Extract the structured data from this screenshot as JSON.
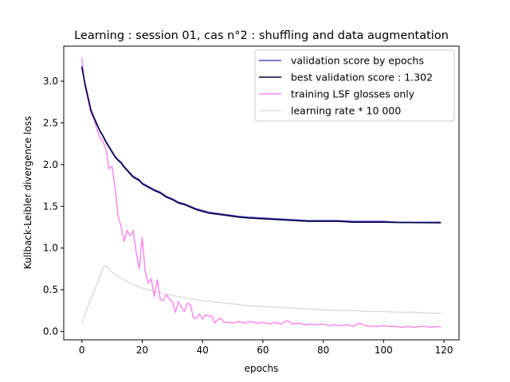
{
  "chart_data": {
    "type": "line",
    "title": "Learning : session 01, cas n°2 : shuffling and data augmentation",
    "xlabel": "epochs",
    "ylabel": "Kullback-Leibler divergence loss",
    "xlim": [
      -6,
      125
    ],
    "ylim": [
      -0.1,
      3.42
    ],
    "xticks": [
      0,
      20,
      40,
      60,
      80,
      100,
      120
    ],
    "yticks": [
      0.0,
      0.5,
      1.0,
      1.5,
      2.0,
      2.5,
      3.0
    ],
    "xtick_labels": [
      "0",
      "20",
      "40",
      "60",
      "80",
      "100",
      "120"
    ],
    "ytick_labels": [
      "0.0",
      "0.5",
      "1.0",
      "1.5",
      "2.0",
      "2.5",
      "3.0"
    ],
    "grid": false,
    "legend_position": "upper right",
    "series": [
      {
        "name": "validation score by epochs",
        "color": "#4b4bc8",
        "points": [
          [
            0,
            3.18
          ],
          [
            1,
            2.98
          ],
          [
            2,
            2.82
          ],
          [
            3,
            2.66
          ],
          [
            4,
            2.57
          ],
          [
            5,
            2.49
          ],
          [
            6,
            2.41
          ],
          [
            7,
            2.35
          ],
          [
            8,
            2.28
          ],
          [
            9,
            2.22
          ],
          [
            10,
            2.16
          ],
          [
            11,
            2.1
          ],
          [
            12,
            2.06
          ],
          [
            13,
            2.03
          ],
          [
            14,
            1.98
          ],
          [
            15,
            1.94
          ],
          [
            16,
            1.9
          ],
          [
            17,
            1.86
          ],
          [
            18,
            1.84
          ],
          [
            19,
            1.82
          ],
          [
            20,
            1.78
          ],
          [
            22,
            1.74
          ],
          [
            24,
            1.7
          ],
          [
            26,
            1.67
          ],
          [
            28,
            1.62
          ],
          [
            30,
            1.59
          ],
          [
            32,
            1.55
          ],
          [
            34,
            1.53
          ],
          [
            36,
            1.5
          ],
          [
            38,
            1.47
          ],
          [
            40,
            1.45
          ],
          [
            42,
            1.43
          ],
          [
            44,
            1.42
          ],
          [
            46,
            1.41
          ],
          [
            48,
            1.4
          ],
          [
            50,
            1.39
          ],
          [
            52,
            1.38
          ],
          [
            55,
            1.37
          ],
          [
            60,
            1.36
          ],
          [
            65,
            1.35
          ],
          [
            70,
            1.34
          ],
          [
            75,
            1.33
          ],
          [
            80,
            1.33
          ],
          [
            85,
            1.33
          ],
          [
            90,
            1.32
          ],
          [
            95,
            1.32
          ],
          [
            100,
            1.32
          ],
          [
            105,
            1.31
          ],
          [
            110,
            1.31
          ],
          [
            115,
            1.31
          ],
          [
            119,
            1.31
          ]
        ]
      },
      {
        "name": "best validation score : 1.302",
        "color": "#000040",
        "points": [
          [
            0,
            3.17
          ],
          [
            1,
            2.97
          ],
          [
            2,
            2.81
          ],
          [
            3,
            2.65
          ],
          [
            4,
            2.56
          ],
          [
            5,
            2.48
          ],
          [
            6,
            2.4
          ],
          [
            7,
            2.34
          ],
          [
            8,
            2.27
          ],
          [
            9,
            2.21
          ],
          [
            10,
            2.15
          ],
          [
            11,
            2.09
          ],
          [
            12,
            2.05
          ],
          [
            13,
            2.02
          ],
          [
            14,
            1.97
          ],
          [
            15,
            1.93
          ],
          [
            16,
            1.89
          ],
          [
            17,
            1.85
          ],
          [
            18,
            1.83
          ],
          [
            19,
            1.81
          ],
          [
            20,
            1.77
          ],
          [
            22,
            1.73
          ],
          [
            24,
            1.69
          ],
          [
            26,
            1.66
          ],
          [
            28,
            1.61
          ],
          [
            30,
            1.58
          ],
          [
            32,
            1.54
          ],
          [
            34,
            1.52
          ],
          [
            36,
            1.49
          ],
          [
            38,
            1.46
          ],
          [
            40,
            1.44
          ],
          [
            42,
            1.42
          ],
          [
            44,
            1.41
          ],
          [
            46,
            1.4
          ],
          [
            48,
            1.39
          ],
          [
            50,
            1.38
          ],
          [
            52,
            1.37
          ],
          [
            55,
            1.36
          ],
          [
            60,
            1.35
          ],
          [
            65,
            1.34
          ],
          [
            70,
            1.33
          ],
          [
            75,
            1.32
          ],
          [
            80,
            1.32
          ],
          [
            85,
            1.32
          ],
          [
            90,
            1.31
          ],
          [
            95,
            1.31
          ],
          [
            100,
            1.31
          ],
          [
            105,
            1.306
          ],
          [
            110,
            1.304
          ],
          [
            115,
            1.303
          ],
          [
            119,
            1.302
          ]
        ]
      },
      {
        "name": "training LSF glosses only",
        "color": "#ff88ee",
        "points": [
          [
            0,
            3.28
          ],
          [
            1,
            2.95
          ],
          [
            2,
            2.78
          ],
          [
            3,
            2.62
          ],
          [
            4,
            2.55
          ],
          [
            5,
            2.42
          ],
          [
            6,
            2.32
          ],
          [
            7,
            2.28
          ],
          [
            8,
            2.18
          ],
          [
            9,
            1.95
          ],
          [
            10,
            1.98
          ],
          [
            11,
            1.72
          ],
          [
            12,
            1.38
          ],
          [
            13,
            1.26
          ],
          [
            14,
            1.08
          ],
          [
            15,
            1.21
          ],
          [
            16,
            1.15
          ],
          [
            17,
            1.21
          ],
          [
            18,
            0.95
          ],
          [
            19,
            0.75
          ],
          [
            20,
            1.13
          ],
          [
            21,
            0.72
          ],
          [
            22,
            0.58
          ],
          [
            23,
            0.63
          ],
          [
            24,
            0.42
          ],
          [
            25,
            0.62
          ],
          [
            26,
            0.38
          ],
          [
            27,
            0.37
          ],
          [
            28,
            0.44
          ],
          [
            29,
            0.39
          ],
          [
            30,
            0.36
          ],
          [
            31,
            0.23
          ],
          [
            32,
            0.36
          ],
          [
            33,
            0.29
          ],
          [
            34,
            0.24
          ],
          [
            35,
            0.34
          ],
          [
            36,
            0.32
          ],
          [
            37,
            0.16
          ],
          [
            38,
            0.16
          ],
          [
            39,
            0.21
          ],
          [
            40,
            0.15
          ],
          [
            41,
            0.2
          ],
          [
            42,
            0.18
          ],
          [
            43,
            0.19
          ],
          [
            44,
            0.1
          ],
          [
            45,
            0.14
          ],
          [
            46,
            0.16
          ],
          [
            47,
            0.11
          ],
          [
            48,
            0.11
          ],
          [
            50,
            0.1
          ],
          [
            52,
            0.12
          ],
          [
            54,
            0.1
          ],
          [
            56,
            0.12
          ],
          [
            58,
            0.1
          ],
          [
            60,
            0.11
          ],
          [
            62,
            0.09
          ],
          [
            64,
            0.11
          ],
          [
            66,
            0.09
          ],
          [
            68,
            0.13
          ],
          [
            70,
            0.09
          ],
          [
            72,
            0.1
          ],
          [
            74,
            0.08
          ],
          [
            76,
            0.09
          ],
          [
            78,
            0.08
          ],
          [
            80,
            0.09
          ],
          [
            82,
            0.07
          ],
          [
            84,
            0.08
          ],
          [
            86,
            0.07
          ],
          [
            88,
            0.08
          ],
          [
            90,
            0.06
          ],
          [
            92,
            0.1
          ],
          [
            94,
            0.07
          ],
          [
            96,
            0.06
          ],
          [
            98,
            0.06
          ],
          [
            100,
            0.07
          ],
          [
            102,
            0.06
          ],
          [
            104,
            0.06
          ],
          [
            106,
            0.05
          ],
          [
            108,
            0.06
          ],
          [
            110,
            0.05
          ],
          [
            112,
            0.06
          ],
          [
            114,
            0.06
          ],
          [
            116,
            0.05
          ],
          [
            118,
            0.06
          ],
          [
            119,
            0.05
          ]
        ]
      },
      {
        "name": "learning rate * 10 000",
        "color": "#dddddd",
        "points": [
          [
            0,
            0.1
          ],
          [
            2,
            0.3
          ],
          [
            4,
            0.48
          ],
          [
            6,
            0.66
          ],
          [
            7,
            0.77
          ],
          [
            8,
            0.79
          ],
          [
            9,
            0.75
          ],
          [
            10,
            0.71
          ],
          [
            12,
            0.66
          ],
          [
            14,
            0.62
          ],
          [
            16,
            0.58
          ],
          [
            18,
            0.55
          ],
          [
            20,
            0.52
          ],
          [
            22,
            0.5
          ],
          [
            25,
            0.47
          ],
          [
            30,
            0.43
          ],
          [
            35,
            0.4
          ],
          [
            40,
            0.37
          ],
          [
            45,
            0.35
          ],
          [
            50,
            0.33
          ],
          [
            55,
            0.31
          ],
          [
            60,
            0.3
          ],
          [
            65,
            0.29
          ],
          [
            70,
            0.28
          ],
          [
            75,
            0.27
          ],
          [
            80,
            0.26
          ],
          [
            85,
            0.25
          ],
          [
            90,
            0.25
          ],
          [
            95,
            0.24
          ],
          [
            100,
            0.24
          ],
          [
            105,
            0.23
          ],
          [
            110,
            0.23
          ],
          [
            115,
            0.22
          ],
          [
            119,
            0.22
          ]
        ]
      }
    ]
  }
}
